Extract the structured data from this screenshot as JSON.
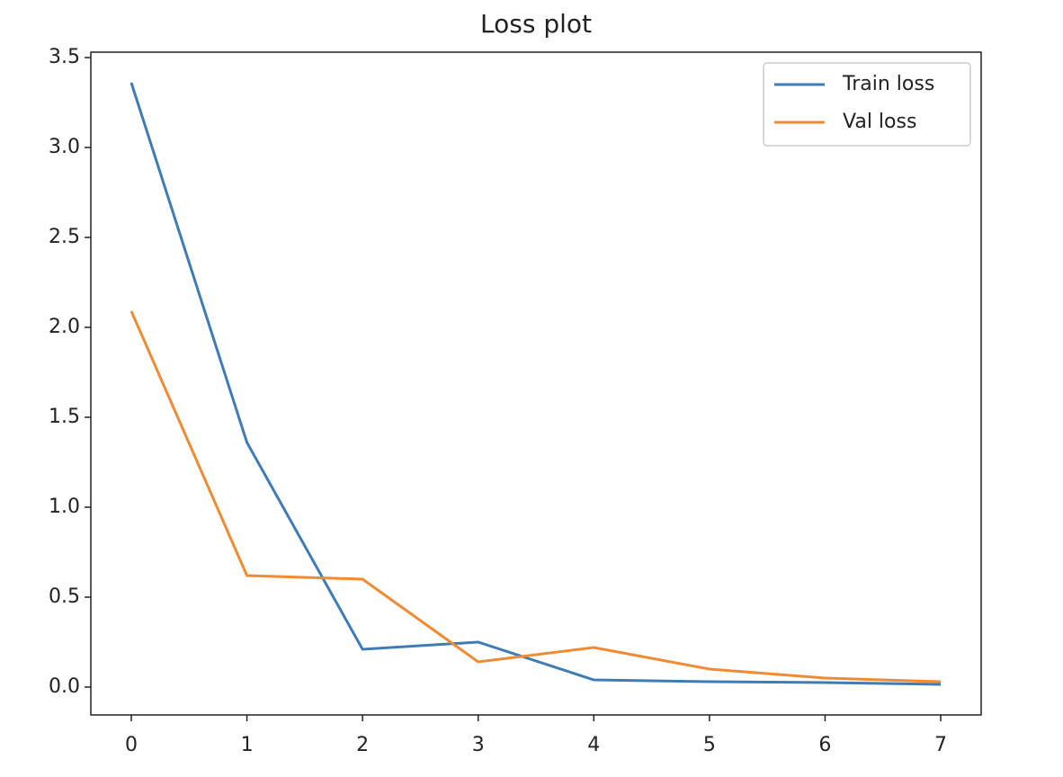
{
  "chart_data": {
    "type": "line",
    "title": "Loss plot",
    "x": [
      0,
      1,
      2,
      3,
      4,
      5,
      6,
      7
    ],
    "series": [
      {
        "name": "Train loss",
        "color": "#3f7bb5",
        "values": [
          3.36,
          1.36,
          0.21,
          0.25,
          0.04,
          0.03,
          0.025,
          0.015
        ]
      },
      {
        "name": "Val loss",
        "color": "#f08b34",
        "values": [
          2.09,
          0.62,
          0.6,
          0.14,
          0.22,
          0.1,
          0.05,
          0.03
        ]
      }
    ],
    "xlim": [
      -0.35,
      7.35
    ],
    "ylim": [
      -0.155,
      3.53
    ],
    "xticks": [
      0,
      1,
      2,
      3,
      4,
      5,
      6,
      7
    ],
    "yticks": [
      {
        "value": 0,
        "label": "0.0"
      },
      {
        "value": 0.5,
        "label": "0.5"
      },
      {
        "value": 1,
        "label": "1.0"
      },
      {
        "value": 1.5,
        "label": "1.5"
      },
      {
        "value": 2,
        "label": "2.0"
      },
      {
        "value": 2.5,
        "label": "2.5"
      },
      {
        "value": 3,
        "label": "3.0"
      },
      {
        "value": 3.5,
        "label": "3.5"
      }
    ],
    "grid": false,
    "legend": "upper right"
  }
}
